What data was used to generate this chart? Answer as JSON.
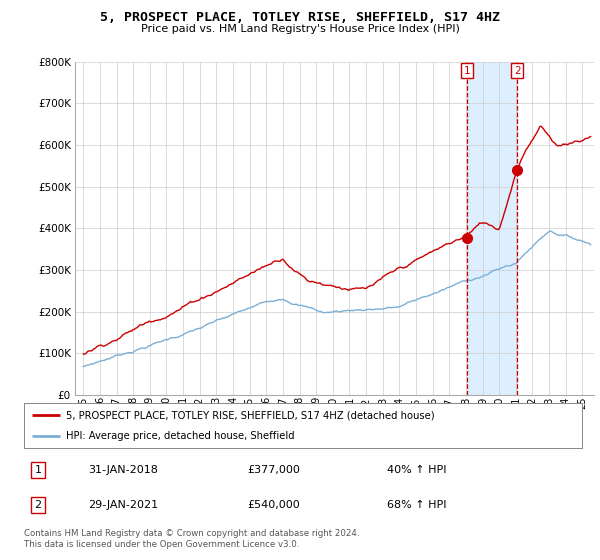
{
  "title": "5, PROSPECT PLACE, TOTLEY RISE, SHEFFIELD, S17 4HZ",
  "subtitle": "Price paid vs. HM Land Registry's House Price Index (HPI)",
  "legend_line1": "5, PROSPECT PLACE, TOTLEY RISE, SHEFFIELD, S17 4HZ (detached house)",
  "legend_line2": "HPI: Average price, detached house, Sheffield",
  "annotation1_date": "31-JAN-2018",
  "annotation1_price": "£377,000",
  "annotation1_hpi": "40% ↑ HPI",
  "annotation2_date": "29-JAN-2021",
  "annotation2_price": "£540,000",
  "annotation2_hpi": "68% ↑ HPI",
  "footnote": "Contains HM Land Registry data © Crown copyright and database right 2024.\nThis data is licensed under the Open Government Licence v3.0.",
  "sale1_x": 2018.08,
  "sale1_y": 377000,
  "sale2_x": 2021.08,
  "sale2_y": 540000,
  "hpi_color": "#7bafd4",
  "price_color": "#cc0000",
  "vline_color": "#cc0000",
  "shade_color": "#ddeeff",
  "background_color": "#ffffff",
  "grid_color": "#cccccc",
  "ylim": [
    0,
    800000
  ],
  "xlim": [
    1994.5,
    2025.7
  ],
  "yticks": [
    0,
    100000,
    200000,
    300000,
    400000,
    500000,
    600000,
    700000,
    800000
  ],
  "xticks": [
    1995,
    1996,
    1997,
    1998,
    1999,
    2000,
    2001,
    2002,
    2003,
    2004,
    2005,
    2006,
    2007,
    2008,
    2009,
    2010,
    2011,
    2012,
    2013,
    2014,
    2015,
    2016,
    2017,
    2018,
    2019,
    2020,
    2021,
    2022,
    2023,
    2024,
    2025
  ]
}
